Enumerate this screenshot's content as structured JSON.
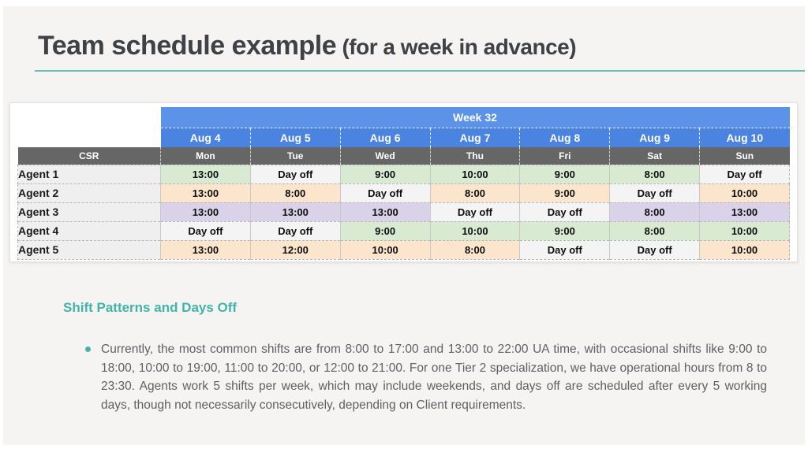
{
  "slide": {
    "title": "Team schedule example",
    "title_suffix": " (for a week in advance)"
  },
  "table": {
    "week_label": "Week 32",
    "corner_label": "CSR",
    "dates": [
      "Aug 4",
      "Aug 5",
      "Aug 6",
      "Aug 7",
      "Aug 8",
      "Aug 9",
      "Aug 10"
    ],
    "days": [
      "Mon",
      "Tue",
      "Wed",
      "Thu",
      "Fri",
      "Sat",
      "Sun"
    ],
    "day_off_label": "Day off",
    "rows": [
      {
        "agent": "Agent 1",
        "row_color": "#d9ead3",
        "shifts": [
          "13:00",
          "Day off",
          "9:00",
          "10:00",
          "9:00",
          "8:00",
          "Day off"
        ]
      },
      {
        "agent": "Agent 2",
        "row_color": "#fce5cd",
        "shifts": [
          "13:00",
          "8:00",
          "Day off",
          "8:00",
          "9:00",
          "Day off",
          "10:00"
        ]
      },
      {
        "agent": "Agent 3",
        "row_color": "#d9d2e9",
        "shifts": [
          "13:00",
          "13:00",
          "13:00",
          "Day off",
          "Day off",
          "8:00",
          "13:00"
        ]
      },
      {
        "agent": "Agent 4",
        "row_color": "#d9ead3",
        "shifts": [
          "Day off",
          "Day off",
          "9:00",
          "10:00",
          "9:00",
          "8:00",
          "10:00"
        ]
      },
      {
        "agent": "Agent 5",
        "row_color": "#fce5cd",
        "shifts": [
          "13:00",
          "12:00",
          "10:00",
          "8:00",
          "Day off",
          "Day off",
          "10:00"
        ]
      }
    ],
    "colors": {
      "week_header_blue": "#5c92e8",
      "date_header_blue": "#4a84e0",
      "day_header_gray": "#666666",
      "day_off_bg": "#f4f4f4",
      "agent_col_bg": "#efefef",
      "shift_green": "#d9ead3",
      "shift_orange": "#fce5cd",
      "shift_purple": "#d9d2e9"
    }
  },
  "section": {
    "heading": "Shift Patterns and Days Off",
    "bullet": "Currently, the most common shifts are from 8:00 to 17:00 and 13:00 to 22:00 UA time, with occasional shifts like 9:00 to 18:00, 10:00 to 19:00, 11:00 to 20:00, or 12:00 to 21:00. For one Tier 2 specialization, we have operational hours from 8 to 23:30. Agents work 5 shifts per week, which may include weekends, and days off are scheduled after every 5 working days, though not necessarily consecutively, depending on Client requirements.",
    "accent_color": "#41b4a7"
  }
}
